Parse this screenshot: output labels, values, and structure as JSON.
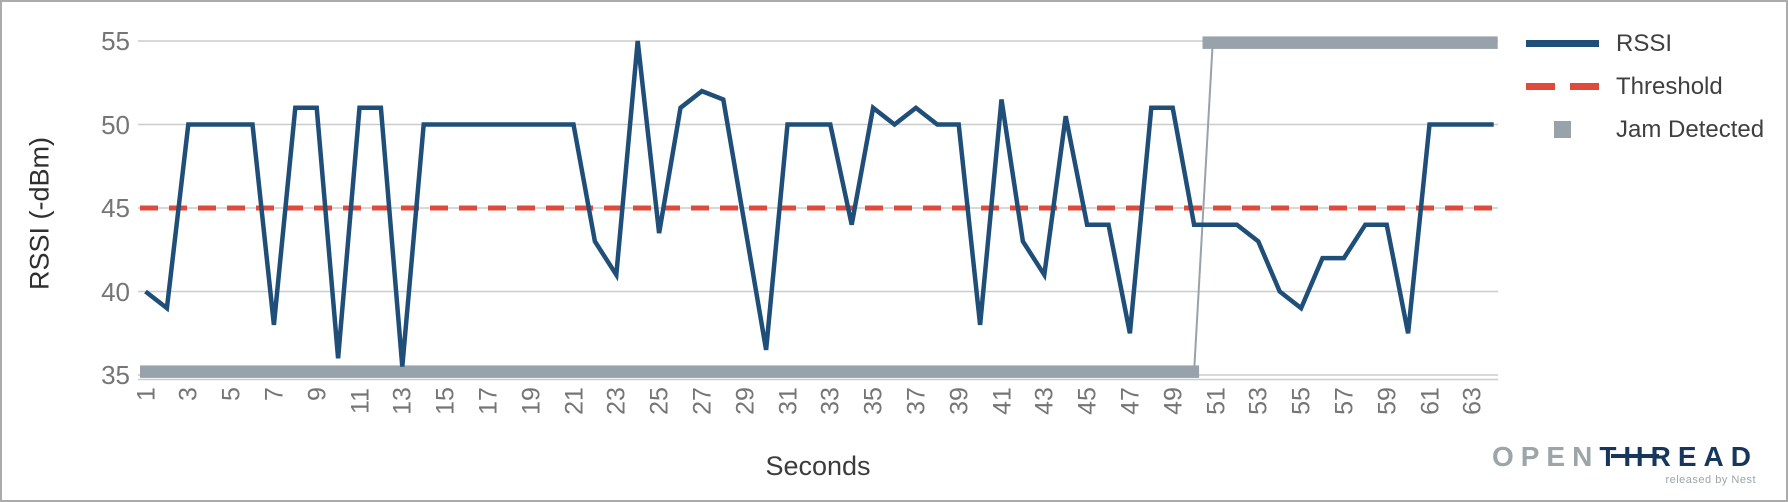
{
  "chart_data": {
    "type": "line",
    "title": "",
    "x_axis": {
      "title": "Seconds",
      "range": [
        1,
        64
      ],
      "tick_labels": [
        "1",
        "3",
        "5",
        "7",
        "9",
        "11",
        "13",
        "15",
        "17",
        "19",
        "21",
        "23",
        "25",
        "27",
        "29",
        "31",
        "33",
        "35",
        "37",
        "39",
        "41",
        "43",
        "45",
        "47",
        "49",
        "51",
        "53",
        "55",
        "57",
        "59",
        "61",
        "63"
      ]
    },
    "y_axis": {
      "title": "RSSI (-dBm)",
      "range": [
        35,
        55
      ],
      "tick_values": [
        55,
        50,
        45,
        40,
        35
      ],
      "tick_labels": [
        "55",
        "50",
        "45",
        "40",
        "35"
      ]
    },
    "grid": true,
    "series": [
      {
        "name": "RSSI",
        "type": "line",
        "color": "#1f4e79",
        "x_start": 1,
        "values": [
          40,
          39,
          50,
          50,
          50,
          50,
          38,
          51,
          51,
          36,
          51,
          51,
          35.5,
          50,
          50,
          50,
          50,
          50,
          50,
          50,
          50,
          43,
          41,
          55,
          43.5,
          51,
          52,
          51.5,
          44,
          36.5,
          50,
          50,
          50,
          44,
          51,
          50,
          51,
          50,
          50,
          38,
          51.5,
          43,
          41,
          50.5,
          44,
          44,
          37.5,
          51,
          51,
          44,
          44,
          44,
          43,
          40,
          39,
          42,
          42,
          44,
          44,
          37.5,
          50,
          50,
          50,
          50
        ]
      },
      {
        "name": "Threshold",
        "type": "dashed-line",
        "color": "#df4a3b",
        "value": 45
      },
      {
        "name": "Jam Detected",
        "type": "step-line",
        "color": "#98a2ab",
        "off_value": 35.2,
        "on_value": 54.9,
        "on_from_x": 51,
        "x_start": 1,
        "x_end": 64
      }
    ],
    "legend": {
      "position": "right",
      "items": [
        {
          "label": "RSSI",
          "swatch": "line",
          "color": "#1f4e79"
        },
        {
          "label": "Threshold",
          "swatch": "dashed-line",
          "color": "#df4a3b"
        },
        {
          "label": "Jam Detected",
          "swatch": "square",
          "color": "#98a2ab"
        }
      ]
    },
    "grid_color": "#cbcbcb",
    "axis_text_color": "#757575"
  },
  "logo": {
    "open": "OPEN",
    "thread": "THREAD",
    "subtitle": "released by Nest"
  }
}
